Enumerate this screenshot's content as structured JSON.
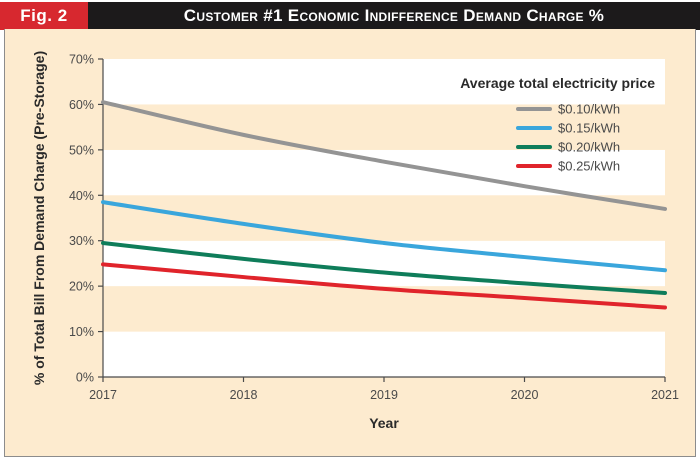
{
  "figure": {
    "label": "Fig. 2",
    "title": "Customer #1 Economic Indifference Demand Charge %"
  },
  "colors": {
    "title_bar": "#1c1a1b",
    "fig_label_bg": "#d7282f",
    "panel_bg": "#fdebcf",
    "band_white": "#ffffff",
    "band_tan": "#fdebcf"
  },
  "chart_data": {
    "type": "line",
    "title": "Customer #1 Economic Indifference Demand Charge %",
    "xlabel": "Year",
    "ylabel": "% of Total Bill From Demand Charge (Pre-Storage)",
    "x": [
      2017,
      2018,
      2019,
      2020,
      2021
    ],
    "x_tick_labels": [
      "2017",
      "2018",
      "2019",
      "2020",
      "2021"
    ],
    "xlim": [
      2017,
      2021
    ],
    "ylim": [
      0,
      70
    ],
    "y_ticks": [
      0,
      10,
      20,
      30,
      40,
      50,
      60,
      70
    ],
    "y_tick_labels": [
      "0%",
      "10%",
      "20%",
      "30%",
      "40%",
      "50%",
      "60%",
      "70%"
    ],
    "grid": "alternating horizontal bands",
    "legend": {
      "title": "Average total electricity price",
      "placement": "top-right"
    },
    "series": [
      {
        "name": "$0.10/kWh",
        "color": "#949494",
        "values": [
          60.5,
          53.3,
          47.4,
          42.0,
          37.0
        ]
      },
      {
        "name": "$0.15/kWh",
        "color": "#3aa6dc",
        "values": [
          38.5,
          33.7,
          29.5,
          26.4,
          23.5
        ]
      },
      {
        "name": "$0.20/kWh",
        "color": "#0f7d5a",
        "values": [
          29.5,
          26.0,
          23.0,
          20.6,
          18.5
        ]
      },
      {
        "name": "$0.25/kWh",
        "color": "#e0242b",
        "values": [
          24.8,
          22.0,
          19.4,
          17.4,
          15.3
        ]
      }
    ]
  }
}
